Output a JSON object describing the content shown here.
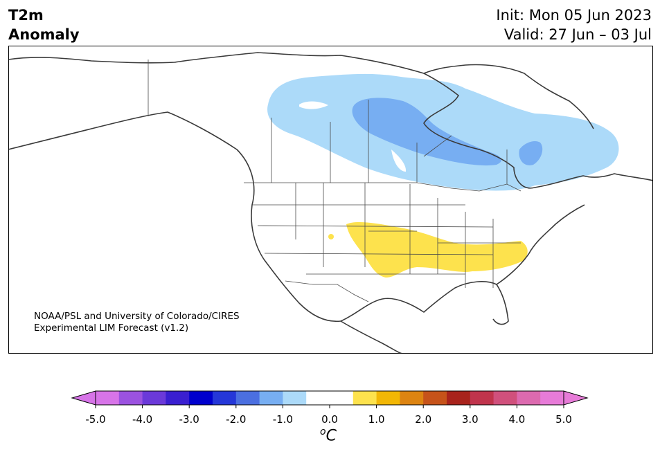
{
  "title": {
    "variable": "T2m",
    "subtitle": "Anomaly",
    "init": "Init: Mon 05 Jun 2023",
    "valid": "Valid: 27 Jun – 03 Jul"
  },
  "credit": {
    "line1": "NOAA/PSL and University of Colorado/CIRES",
    "line2": "Experimental LIM Forecast (v1.2)"
  },
  "colorbar": {
    "unit_sup": "o",
    "unit": "C",
    "tick_labels": [
      "-5.0",
      "-4.0",
      "-3.0",
      "-2.0",
      "-1.0",
      "0.0",
      "1.0",
      "2.0",
      "3.0",
      "4.0",
      "5.0"
    ],
    "colors": [
      "#d774e8",
      "#9b52e0",
      "#6b39d9",
      "#3a1fd0",
      "#0000cd",
      "#2537d8",
      "#4b6fe0",
      "#77aef2",
      "#acdaf9",
      "#ffffff",
      "#ffffff",
      "#fde24d",
      "#f2b705",
      "#dd8411",
      "#c6531a",
      "#a8231c",
      "#c0344c",
      "#d0507c",
      "#dc6aaf",
      "#e77bd8"
    ],
    "over_color": "#e77bd8",
    "under_color": "#d774e8"
  },
  "regions": {
    "cold_light": "#acdaf9",
    "cold_mid": "#77aef2",
    "warm": "#fde24d"
  }
}
